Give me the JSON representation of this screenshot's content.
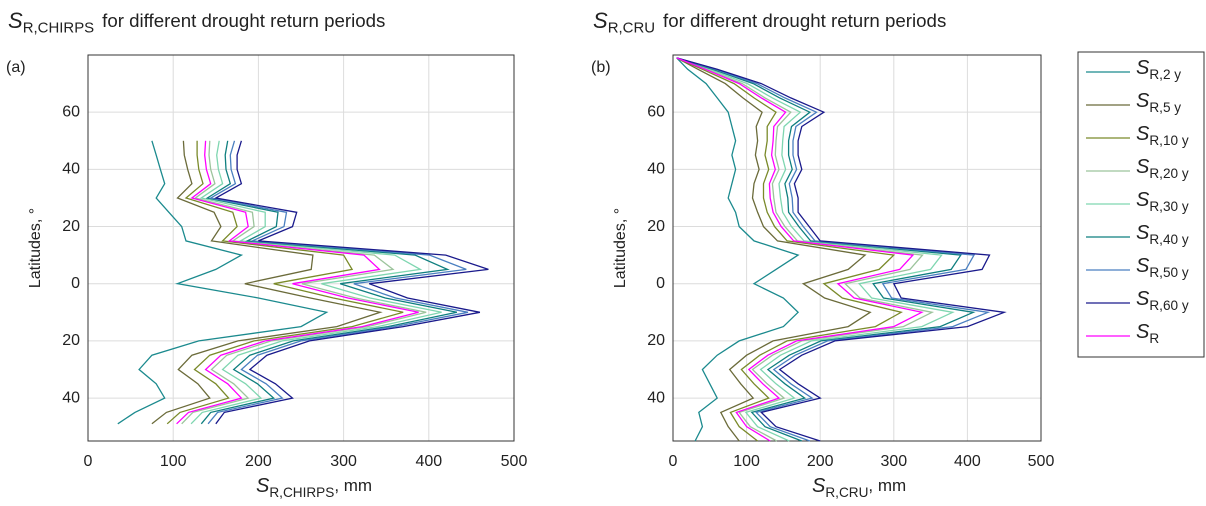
{
  "chart_data": [
    {
      "type": "line",
      "orientation": "horizontal",
      "panel_label": "(a)",
      "title": {
        "symbol": "S",
        "subscript": "R,CHIRPS",
        "text": "for different drought return periods"
      },
      "x_label": {
        "symbol": "S",
        "subscript": "R,CHIRPS",
        "suffix": ", mm"
      },
      "y_label": "Latitudes, °",
      "xlim": [
        0,
        500
      ],
      "xticks": [
        0,
        100,
        200,
        300,
        400,
        500
      ],
      "ylim": [
        -55,
        80
      ],
      "yticks": [
        {
          "value": -40,
          "label": "40"
        },
        {
          "value": -20,
          "label": "20"
        },
        0,
        20,
        40,
        60
      ],
      "grid": true,
      "y": [
        50,
        45,
        40,
        35,
        30,
        25,
        20,
        15,
        10,
        5,
        0,
        -5,
        -10,
        -15,
        -20,
        -25,
        -30,
        -35,
        -40,
        -45,
        -49
      ],
      "series": [
        {
          "color": "#1b8a8e",
          "values": [
            75,
            80,
            85,
            90,
            80,
            95,
            110,
            115,
            180,
            150,
            105,
            200,
            280,
            250,
            130,
            75,
            60,
            80,
            90,
            55,
            35
          ]
        },
        {
          "color": "#6b6b3a",
          "values": [
            112,
            113,
            117,
            122,
            105,
            148,
            156,
            145,
            264,
            262,
            184,
            261,
            343,
            292,
            176,
            122,
            106,
            129,
            143,
            92,
            75
          ]
        },
        {
          "color": "#7a8a2a",
          "values": [
            128,
            128,
            130,
            135,
            115,
            170,
            175,
            158,
            300,
            310,
            218,
            288,
            370,
            310,
            195,
            143,
            125,
            150,
            165,
            108,
            93
          ]
        },
        {
          "color": "#9cc49c",
          "values": [
            143,
            142,
            144,
            149,
            126,
            193,
            195,
            170,
            336,
            358,
            251,
            314,
            397,
            328,
            215,
            163,
            145,
            171,
            188,
            123,
            110
          ]
        },
        {
          "color": "#7fd6b0",
          "values": [
            154,
            151,
            153,
            158,
            133,
            208,
            208,
            179,
            360,
            390,
            274,
            331,
            415,
            340,
            228,
            176,
            158,
            185,
            203,
            134,
            121
          ]
        },
        {
          "color": "#0f7f7f",
          "values": [
            164,
            161,
            162,
            167,
            140,
            223,
            221,
            187,
            384,
            422,
            296,
            349,
            433,
            352,
            241,
            190,
            171,
            199,
            218,
            144,
            133
          ]
        },
        {
          "color": "#4a7fc0",
          "values": [
            172,
            167,
            168,
            173,
            144,
            233,
            230,
            193,
            401,
            444,
            312,
            361,
            446,
            360,
            250,
            199,
            180,
            209,
            228,
            152,
            141
          ]
        },
        {
          "color": "#1a1a8c",
          "values": [
            180,
            175,
            175,
            180,
            150,
            245,
            240,
            200,
            420,
            470,
            330,
            375,
            460,
            370,
            260,
            210,
            190,
            220,
            240,
            160,
            150
          ]
        },
        {
          "color": "#ff00ff",
          "values": [
            138,
            137,
            139,
            144,
            122,
            185,
            188,
            166,
            324,
            342,
            240,
            305,
            388,
            322,
            208,
            156,
            138,
            164,
            180,
            118,
            104
          ]
        }
      ]
    },
    {
      "type": "line",
      "orientation": "horizontal",
      "panel_label": "(b)",
      "title": {
        "symbol": "S",
        "subscript": "R,CRU",
        "text": "for different drought return periods"
      },
      "x_label": {
        "symbol": "S",
        "subscript": "R,CRU",
        "suffix": ", mm"
      },
      "y_label": "Latitudes, °",
      "xlim": [
        0,
        500
      ],
      "xticks": [
        0,
        100,
        200,
        300,
        400,
        500
      ],
      "ylim": [
        -55,
        80
      ],
      "yticks": [
        {
          "value": -40,
          "label": "40"
        },
        {
          "value": -20,
          "label": "20"
        },
        0,
        20,
        40,
        60
      ],
      "grid": true,
      "legend": "right",
      "y": [
        79,
        75,
        70,
        65,
        60,
        55,
        50,
        45,
        40,
        35,
        30,
        25,
        20,
        15,
        10,
        5,
        0,
        -5,
        -10,
        -15,
        -20,
        -25,
        -30,
        -35,
        -40,
        -45,
        -50,
        -55
      ],
      "series": [
        {
          "name": "S",
          "subscript": "R,2 y",
          "color": "#1b8a8e",
          "values": [
            5,
            20,
            45,
            60,
            75,
            80,
            85,
            80,
            85,
            80,
            75,
            85,
            90,
            110,
            170,
            140,
            110,
            150,
            170,
            150,
            90,
            60,
            40,
            50,
            60,
            35,
            40,
            30
          ]
        },
        {
          "name": "S",
          "subscript": "R,5 y",
          "color": "#6b6b3a",
          "values": [
            5,
            34,
            71,
            95,
            121,
            113,
            115,
            112,
            117,
            110,
            108,
            115,
            123,
            142,
            261,
            238,
            177,
            206,
            268,
            238,
            136,
            100,
            77,
            92,
            109,
            65,
            75,
            90
          ]
        },
        {
          "name": "S",
          "subscript": "R,10 y",
          "color": "#7a8a2a",
          "values": [
            5,
            40,
            83,
            110,
            140,
            128,
            128,
            125,
            130,
            123,
            123,
            128,
            138,
            155,
            300,
            280,
            205,
            230,
            310,
            275,
            155,
            118,
            93,
            110,
            130,
            78,
            90,
            115
          ]
        },
        {
          "name": "S",
          "subscript": "R,20 y",
          "color": "#9cc49c",
          "values": [
            5,
            46,
            94,
            125,
            160,
            142,
            140,
            139,
            144,
            135,
            137,
            140,
            152,
            169,
            339,
            322,
            234,
            254,
            352,
            313,
            175,
            135,
            108,
            128,
            151,
            90,
            105,
            141
          ]
        },
        {
          "name": "S",
          "subscript": "R,30 y",
          "color": "#7fd6b0",
          "values": [
            5,
            50,
            101,
            135,
            173,
            151,
            149,
            148,
            153,
            144,
            146,
            149,
            161,
            178,
            365,
            350,
            253,
            270,
            380,
            338,
            188,
            146,
            119,
            140,
            165,
            99,
            115,
            158
          ]
        },
        {
          "name": "S",
          "subscript": "R,40 y",
          "color": "#0f7f7f",
          "values": [
            5,
            54,
            109,
            145,
            186,
            161,
            157,
            157,
            162,
            152,
            156,
            157,
            171,
            187,
            391,
            378,
            272,
            286,
            408,
            363,
            201,
            158,
            129,
            152,
            179,
            107,
            125,
            175
          ]
        },
        {
          "name": "S",
          "subscript": "R,50 y",
          "color": "#4a7fc0",
          "values": [
            5,
            57,
            114,
            152,
            195,
            167,
            163,
            163,
            168,
            158,
            162,
            163,
            177,
            193,
            409,
            398,
            285,
            297,
            428,
            380,
            210,
            166,
            137,
            160,
            189,
            113,
            132,
            186
          ]
        },
        {
          "name": "S",
          "subscript": "R,60 y",
          "color": "#1a1a8c",
          "values": [
            5,
            60,
            120,
            160,
            205,
            175,
            170,
            170,
            175,
            165,
            170,
            170,
            185,
            200,
            430,
            420,
            300,
            310,
            450,
            400,
            220,
            175,
            145,
            170,
            200,
            120,
            140,
            200
          ]
        },
        {
          "name": "S",
          "subscript": "R",
          "color": "#ff00ff",
          "values": [
            5,
            44,
            90,
            120,
            153,
            137,
            136,
            134,
            139,
            131,
            132,
            136,
            147,
            164,
            326,
            308,
            224,
            246,
            338,
            300,
            168,
            129,
            103,
            122,
            144,
            86,
            100,
            132
          ]
        }
      ]
    }
  ]
}
